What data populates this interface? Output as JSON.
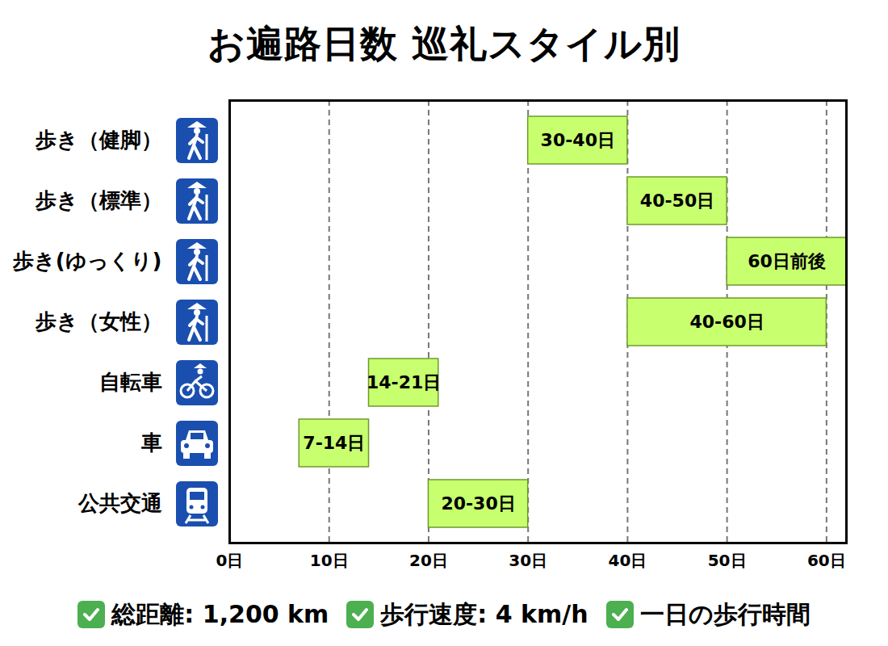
{
  "chart_data": {
    "type": "bar",
    "title": "お遍路日数 巡礼スタイル別",
    "orientation": "horizontal",
    "categories": [
      "歩き（健脚）",
      "歩き（標準）",
      "歩き(ゆっくり)",
      "歩き（女性）",
      "自転車",
      "車",
      "公共交通"
    ],
    "values": [
      [
        30,
        40
      ],
      [
        40,
        50
      ],
      [
        50,
        62
      ],
      [
        40,
        60
      ],
      [
        14,
        21
      ],
      [
        7,
        14
      ],
      [
        20,
        30
      ]
    ],
    "value_labels": [
      "30-40日",
      "40-50日",
      "60日前後",
      "40-60日",
      "14-21日",
      "7-14日",
      "20-30日"
    ],
    "data_labels": true,
    "color": "#c8ff6e",
    "xlim": [
      0,
      62
    ],
    "xticks": [
      {
        "value": 0,
        "label": "0日"
      },
      {
        "value": 10,
        "label": "10日"
      },
      {
        "value": 20,
        "label": "20日"
      },
      {
        "value": 30,
        "label": "30日"
      },
      {
        "value": 40,
        "label": "40日"
      },
      {
        "value": 50,
        "label": "50日"
      },
      {
        "value": 60,
        "label": "60日"
      }
    ],
    "grid": true,
    "notes": [
      "総距離: 1,200 km",
      "歩行速度: 4 km/h",
      "一日の歩行時間"
    ]
  }
}
